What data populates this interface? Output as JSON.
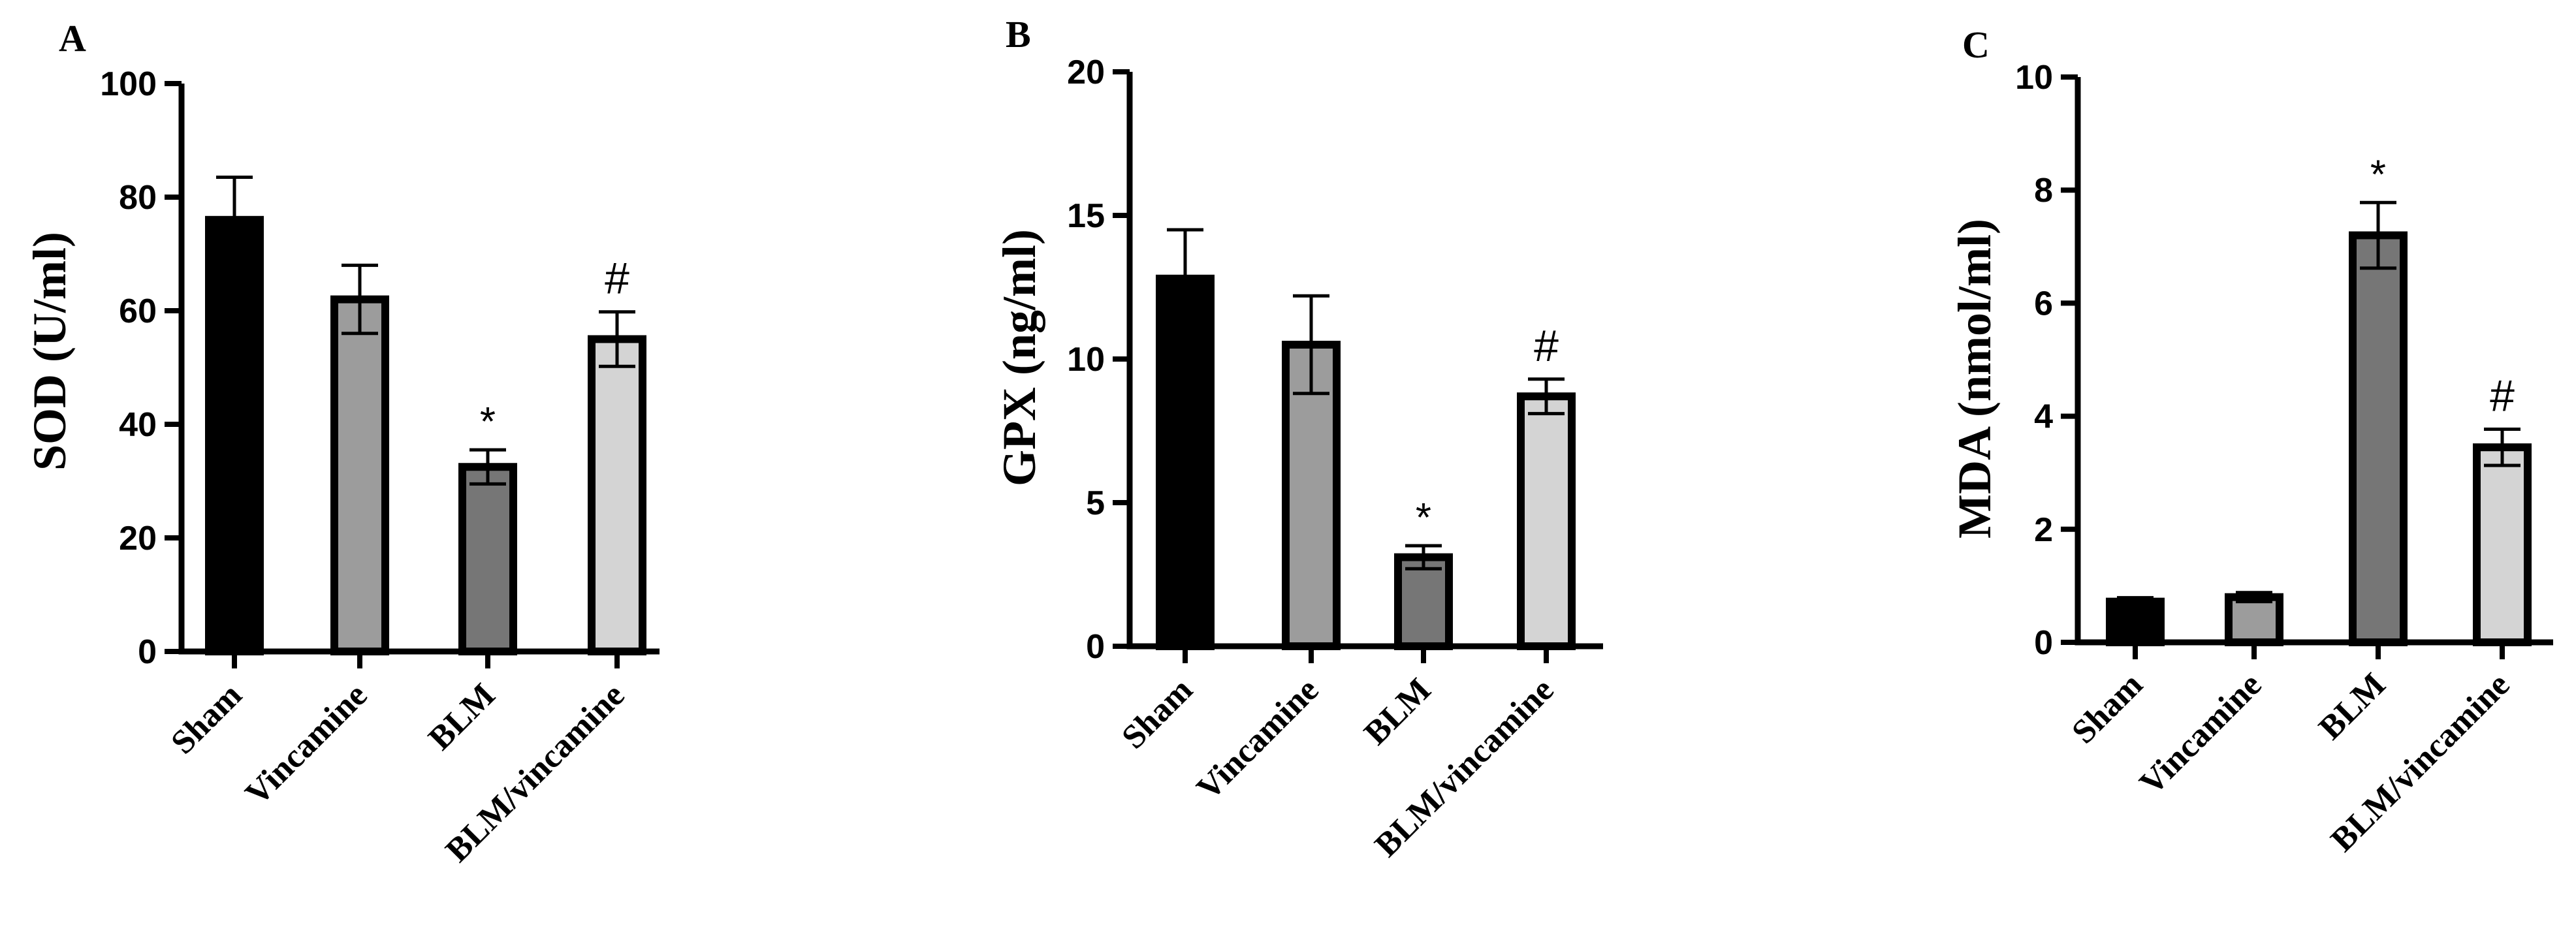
{
  "chart_data": [
    {
      "type": "bar",
      "panel": "A",
      "categories": [
        "Sham",
        "Vincamine",
        "BLM",
        "BLM/vincamine"
      ],
      "values": [
        76,
        62,
        32.5,
        55
      ],
      "errors": [
        7.5,
        6,
        3,
        4.8
      ],
      "markers": [
        "",
        "",
        "*",
        "#"
      ],
      "ylabel": "SOD (U/ml)",
      "ylim": [
        0,
        100
      ],
      "yticks": [
        0,
        20,
        40,
        60,
        80,
        100
      ],
      "grid": false
    },
    {
      "type": "bar",
      "panel": "B",
      "categories": [
        "Sham",
        "Vincamine",
        "BLM",
        "BLM/vincamine"
      ],
      "values": [
        12.8,
        10.5,
        3.1,
        8.7
      ],
      "errors": [
        1.7,
        1.7,
        0.4,
        0.6
      ],
      "markers": [
        "",
        "",
        "*",
        "#"
      ],
      "ylabel": "GPX (ng/ml)",
      "ylim": [
        0,
        20
      ],
      "yticks": [
        0,
        5,
        10,
        15,
        20
      ],
      "grid": false
    },
    {
      "type": "bar",
      "panel": "C",
      "categories": [
        "Sham",
        "Vincamine",
        "BLM",
        "BLM/vincamine"
      ],
      "values": [
        0.72,
        0.8,
        7.2,
        3.45
      ],
      "errors": [
        0.07,
        0.08,
        0.58,
        0.32
      ],
      "markers": [
        "",
        "",
        "*",
        "#"
      ],
      "ylabel": "MDA (nmol/ml)",
      "ylim": [
        0,
        10
      ],
      "yticks": [
        0,
        2,
        4,
        6,
        8,
        10
      ],
      "grid": false
    }
  ],
  "colors": {
    "bar_fills": [
      "#000000",
      "#9c9c9c",
      "#767676",
      "#d4d4d4"
    ],
    "axis": "#000000",
    "background": "#ffffff"
  }
}
